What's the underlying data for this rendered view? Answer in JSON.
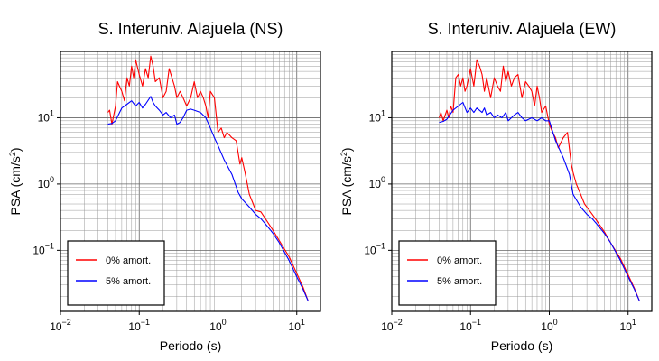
{
  "charts": [
    {
      "title": "S. Interuniv. Alajuela (NS)",
      "xlabel": "Periodo (s)",
      "ylabel_main": "PSA (cm/s",
      "ylabel_sup": "2",
      "ylabel_close": ")"
    },
    {
      "title": "S. Interuniv. Alajuela (EW)",
      "xlabel": "Periodo (s)",
      "ylabel_main": "PSA (cm/s",
      "ylabel_sup": "2",
      "ylabel_close": ")"
    }
  ],
  "x_ticks": [
    {
      "base": "10",
      "exp": "−2"
    },
    {
      "base": "10",
      "exp": "−1"
    },
    {
      "base": "10",
      "exp": "0"
    },
    {
      "base": "10",
      "exp": "1"
    }
  ],
  "y_ticks": [
    {
      "base": "10",
      "exp": "−1"
    },
    {
      "base": "10",
      "exp": "0"
    },
    {
      "base": "10",
      "exp": "1"
    }
  ],
  "legend": [
    {
      "label": "0% amort.",
      "color": "#ff0000"
    },
    {
      "label": "5% amort.",
      "color": "#0000ff"
    }
  ],
  "chart_data": [
    {
      "type": "line",
      "title": "S. Interuniv. Alajuela (NS)",
      "xlabel": "Periodo (s)",
      "ylabel": "PSA (cm/s2)",
      "xscale": "log",
      "yscale": "log",
      "xlim": [
        0.01,
        20
      ],
      "ylim": [
        0.012,
        100
      ],
      "grid": true,
      "legend_position": "bottom-left",
      "series": [
        {
          "name": "0% amort.",
          "color": "#ff0000",
          "x": [
            0.04,
            0.042,
            0.045,
            0.05,
            0.053,
            0.056,
            0.06,
            0.065,
            0.07,
            0.075,
            0.08,
            0.085,
            0.09,
            0.1,
            0.11,
            0.12,
            0.13,
            0.14,
            0.15,
            0.16,
            0.18,
            0.2,
            0.22,
            0.24,
            0.26,
            0.28,
            0.3,
            0.33,
            0.36,
            0.4,
            0.45,
            0.5,
            0.55,
            0.6,
            0.65,
            0.7,
            0.75,
            0.8,
            0.9,
            1.0,
            1.1,
            1.2,
            1.3,
            1.5,
            1.7,
            1.9,
            2.0,
            2.2,
            2.5,
            2.8,
            3.0,
            3.5,
            4.0,
            5.0,
            6.0,
            8.0,
            10.0,
            12.0,
            14.0
          ],
          "y": [
            12,
            13,
            8,
            15,
            35,
            30,
            25,
            18,
            40,
            30,
            60,
            40,
            75,
            45,
            30,
            55,
            40,
            85,
            60,
            35,
            40,
            20,
            25,
            55,
            40,
            30,
            20,
            25,
            20,
            15,
            20,
            35,
            20,
            25,
            20,
            15,
            10,
            25,
            20,
            6,
            7,
            5,
            6,
            5,
            4.5,
            2.0,
            2.5,
            1.5,
            0.7,
            0.5,
            0.4,
            0.38,
            0.3,
            0.2,
            0.14,
            0.08,
            0.045,
            0.028,
            0.017
          ]
        },
        {
          "name": "5% amort.",
          "color": "#0000ff",
          "x": [
            0.04,
            0.045,
            0.05,
            0.06,
            0.07,
            0.08,
            0.09,
            0.1,
            0.11,
            0.12,
            0.14,
            0.15,
            0.16,
            0.18,
            0.2,
            0.22,
            0.25,
            0.28,
            0.3,
            0.33,
            0.36,
            0.4,
            0.45,
            0.5,
            0.6,
            0.7,
            0.8,
            0.9,
            1.0,
            1.2,
            1.5,
            1.8,
            2.0,
            2.5,
            3.0,
            3.5,
            4.0,
            5.0,
            6.0,
            8.0,
            10.0,
            12.0,
            14.0
          ],
          "y": [
            8,
            8.2,
            9,
            14,
            16,
            18,
            15,
            17,
            14,
            16,
            21,
            17,
            15,
            13,
            11,
            12,
            10,
            11,
            8,
            8.5,
            10,
            13,
            13.5,
            13,
            12,
            10,
            7,
            5,
            3.8,
            2.3,
            1.4,
            0.75,
            0.6,
            0.45,
            0.35,
            0.3,
            0.25,
            0.18,
            0.13,
            0.07,
            0.04,
            0.026,
            0.017
          ]
        }
      ]
    },
    {
      "type": "line",
      "title": "S. Interuniv. Alajuela (EW)",
      "xlabel": "Periodo (s)",
      "ylabel": "PSA (cm/s2)",
      "xscale": "log",
      "yscale": "log",
      "xlim": [
        0.01,
        20
      ],
      "ylim": [
        0.012,
        100
      ],
      "grid": true,
      "legend_position": "bottom-left",
      "series": [
        {
          "name": "0% amort.",
          "color": "#ff0000",
          "x": [
            0.04,
            0.042,
            0.045,
            0.05,
            0.053,
            0.056,
            0.06,
            0.065,
            0.07,
            0.075,
            0.08,
            0.085,
            0.09,
            0.1,
            0.11,
            0.12,
            0.13,
            0.14,
            0.15,
            0.16,
            0.18,
            0.2,
            0.22,
            0.24,
            0.26,
            0.28,
            0.3,
            0.33,
            0.36,
            0.4,
            0.45,
            0.5,
            0.55,
            0.6,
            0.65,
            0.7,
            0.75,
            0.8,
            0.9,
            1.0,
            1.1,
            1.2,
            1.3,
            1.5,
            1.7,
            1.9,
            2.0,
            2.2,
            2.5,
            2.8,
            3.0,
            3.5,
            4.0,
            5.0,
            6.0,
            8.0,
            10.0,
            12.0,
            14.0
          ],
          "y": [
            10,
            12,
            9,
            13,
            10,
            15,
            12,
            40,
            45,
            30,
            40,
            25,
            30,
            55,
            30,
            75,
            60,
            45,
            25,
            40,
            20,
            40,
            30,
            25,
            60,
            35,
            50,
            30,
            40,
            45,
            20,
            35,
            30,
            25,
            15,
            30,
            20,
            12,
            15,
            8,
            6,
            5,
            3.5,
            5,
            6,
            2.0,
            1.5,
            1.0,
            0.7,
            0.5,
            0.45,
            0.35,
            0.28,
            0.19,
            0.13,
            0.075,
            0.043,
            0.027,
            0.017
          ]
        },
        {
          "name": "5% amort.",
          "color": "#0000ff",
          "x": [
            0.04,
            0.045,
            0.05,
            0.06,
            0.07,
            0.08,
            0.09,
            0.1,
            0.11,
            0.12,
            0.14,
            0.15,
            0.16,
            0.18,
            0.2,
            0.22,
            0.25,
            0.28,
            0.3,
            0.33,
            0.36,
            0.4,
            0.45,
            0.5,
            0.6,
            0.7,
            0.8,
            0.9,
            1.0,
            1.2,
            1.5,
            1.8,
            2.0,
            2.5,
            3.0,
            3.5,
            4.0,
            5.0,
            6.0,
            8.0,
            10.0,
            12.0,
            14.0
          ],
          "y": [
            8.5,
            8.8,
            9.5,
            13,
            15,
            17,
            12,
            14,
            12,
            14,
            12,
            14,
            11,
            12,
            10,
            11,
            10,
            12,
            9,
            10,
            11,
            12,
            10,
            9,
            10,
            9,
            10,
            9,
            9,
            4.5,
            2.5,
            1.4,
            0.7,
            0.45,
            0.35,
            0.3,
            0.25,
            0.18,
            0.13,
            0.07,
            0.04,
            0.026,
            0.017
          ]
        }
      ]
    }
  ]
}
